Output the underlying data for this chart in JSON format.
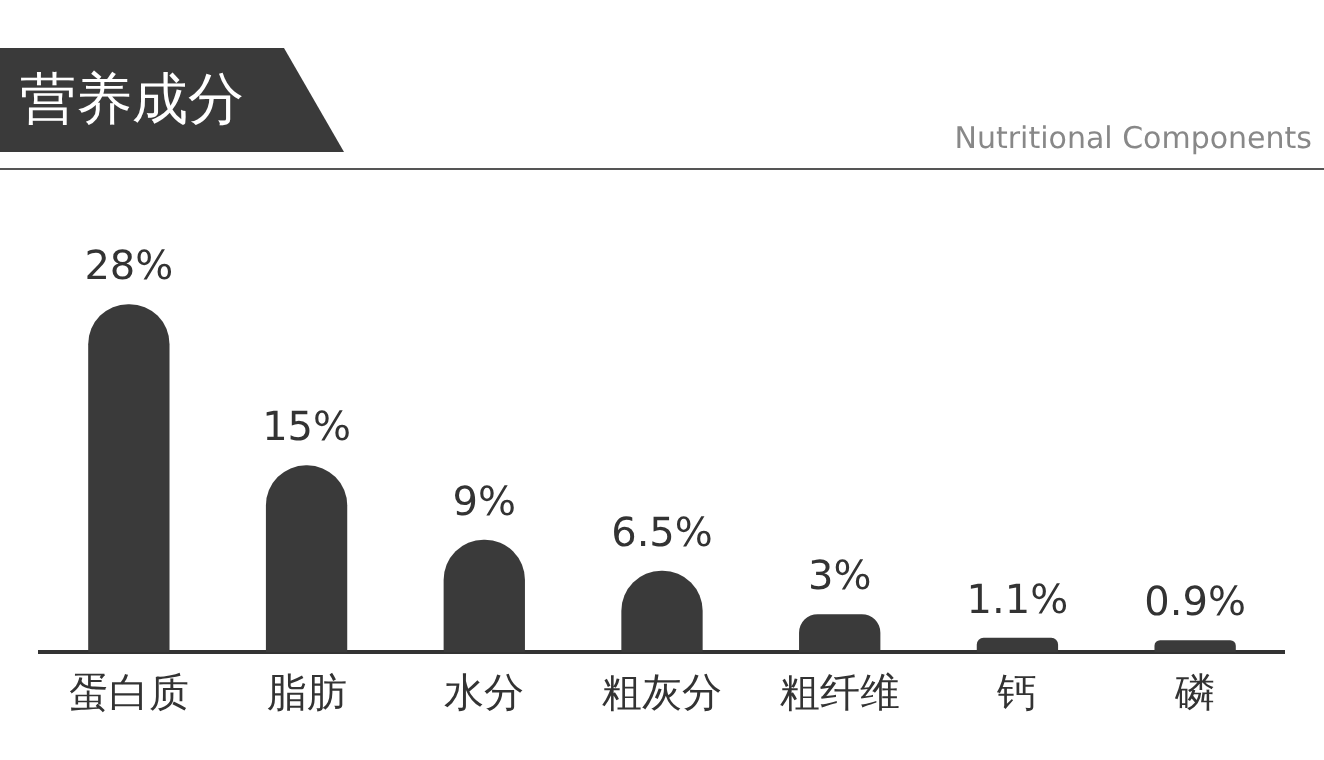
{
  "chart_data": {
    "type": "bar",
    "title": "营养成分",
    "subtitle": "Nutritional Components",
    "categories": [
      "蛋白质",
      "脂肪",
      "水分",
      "粗灰分",
      "粗纤维",
      "钙",
      "磷"
    ],
    "values": [
      28,
      15,
      9,
      6.5,
      3,
      1.1,
      0.9
    ],
    "value_labels": [
      "28%",
      "15%",
      "9%",
      "6.5%",
      "3%",
      "1.1%",
      "0.9%"
    ],
    "color": "#3a3a3a",
    "grid": false
  }
}
